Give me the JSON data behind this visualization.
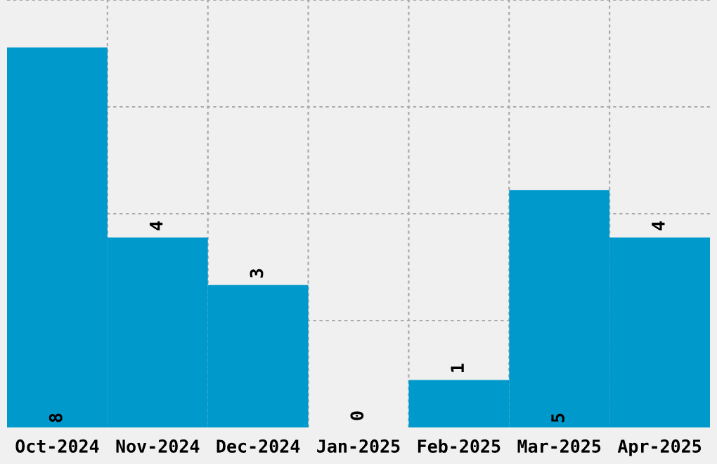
{
  "chart_data": {
    "type": "bar",
    "categories": [
      "Oct-2024",
      "Nov-2024",
      "Dec-2024",
      "Jan-2025",
      "Feb-2025",
      "Mar-2025",
      "Apr-2025"
    ],
    "values": [
      8,
      4,
      3,
      0,
      1,
      5,
      4
    ],
    "color": "#0099cc",
    "ylim": [
      0,
      9
    ],
    "yticks": [
      {
        "value": 2.25,
        "label": null
      },
      {
        "value": 4.5,
        "label": null
      },
      {
        "value": 6.75,
        "label": null
      },
      {
        "value": 9,
        "label": null
      }
    ],
    "grid": true,
    "data_labels": true,
    "tick_labels": "x"
  }
}
